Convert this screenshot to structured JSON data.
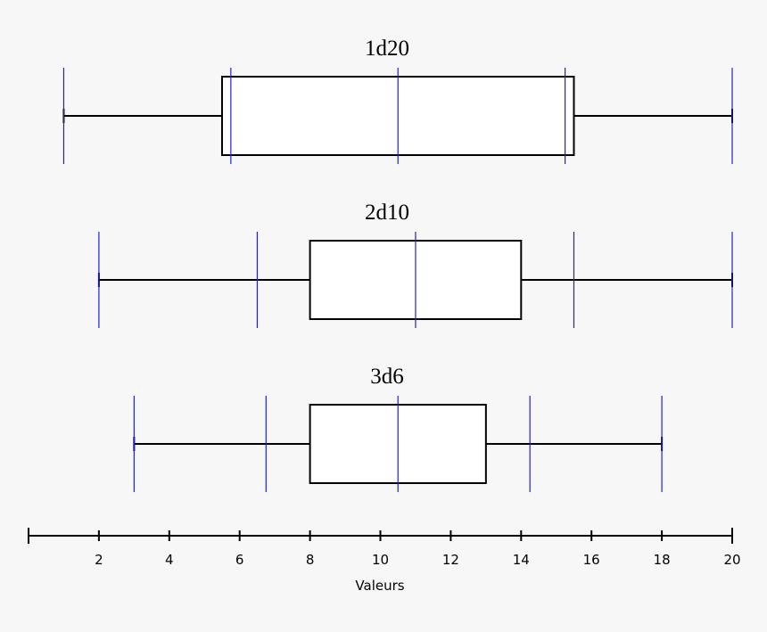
{
  "chart_data": {
    "type": "boxplot",
    "xlabel": "Valeurs",
    "xlim": [
      0,
      20
    ],
    "x_ticks": [
      2,
      4,
      6,
      8,
      10,
      12,
      14,
      16,
      18,
      20
    ],
    "colors": {
      "box_stroke": "#000000",
      "box_fill": "#ffffff",
      "marker_line": "#2222cc",
      "background": "#f7f7f7"
    },
    "series": [
      {
        "name": "1d20",
        "min": 1,
        "q1": 5.5,
        "median": 10.5,
        "q3": 15.5,
        "max": 20,
        "markers": [
          1,
          5.75,
          10.5,
          15.25,
          20
        ]
      },
      {
        "name": "2d10",
        "min": 2,
        "q1": 8,
        "median": 11,
        "q3": 14,
        "max": 20,
        "markers": [
          2,
          6.5,
          11,
          15.5,
          20
        ]
      },
      {
        "name": "3d6",
        "min": 3,
        "q1": 8,
        "median": 10.5,
        "q3": 13,
        "max": 18,
        "markers": [
          3,
          6.75,
          10.5,
          14.25,
          18
        ]
      }
    ]
  }
}
